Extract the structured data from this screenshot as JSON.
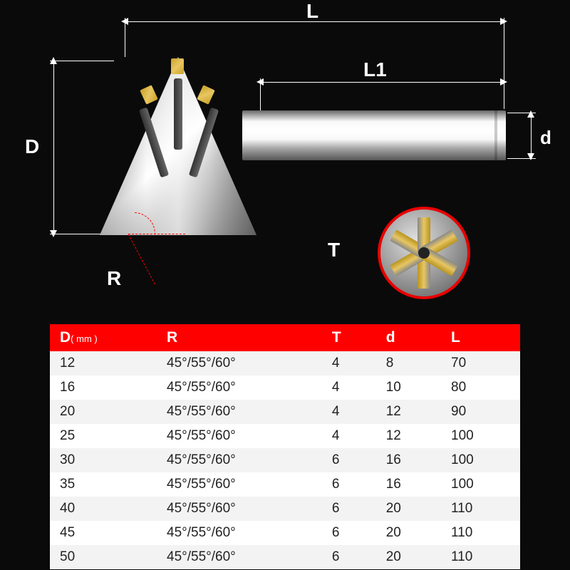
{
  "labels": {
    "L": "L",
    "L1": "L1",
    "D": "D",
    "d": "d",
    "T": "T",
    "R": "R"
  },
  "colors": {
    "accent_red": "#ff0000",
    "background": "#0a0a0a",
    "label_white": "#ffffff",
    "row_odd": "#f3f3f3",
    "row_even": "#ffffff",
    "gold": "#c9a227",
    "silver_light": "#e8e8e8",
    "silver_dark": "#888888"
  },
  "table": {
    "columns": [
      {
        "label": "D",
        "unit": "( mm )"
      },
      {
        "label": "R",
        "unit": ""
      },
      {
        "label": "T",
        "unit": ""
      },
      {
        "label": "d",
        "unit": ""
      },
      {
        "label": "L",
        "unit": ""
      }
    ],
    "rows": [
      [
        "12",
        "45°/55°/60°",
        "4",
        "8",
        "70"
      ],
      [
        "16",
        "45°/55°/60°",
        "4",
        "10",
        "80"
      ],
      [
        "20",
        "45°/55°/60°",
        "4",
        "12",
        "90"
      ],
      [
        "25",
        "45°/55°/60°",
        "4",
        "12",
        "100"
      ],
      [
        "30",
        "45°/55°/60°",
        "6",
        "16",
        "100"
      ],
      [
        "35",
        "45°/55°/60°",
        "6",
        "16",
        "100"
      ],
      [
        "40",
        "45°/55°/60°",
        "6",
        "20",
        "110"
      ],
      [
        "45",
        "45°/55°/60°",
        "6",
        "20",
        "110"
      ],
      [
        "50",
        "45°/55°/60°",
        "6",
        "20",
        "110"
      ]
    ],
    "header_bg": "#ff0000",
    "header_fg": "#ffffff",
    "font_size_header": 21,
    "font_size_body": 19
  },
  "diagram": {
    "type": "technical-drawing",
    "tool_type": "dovetail-cutter",
    "blades": 6,
    "detail_circle_border": "#e80000",
    "angle_guide_color": "#ff0000"
  }
}
